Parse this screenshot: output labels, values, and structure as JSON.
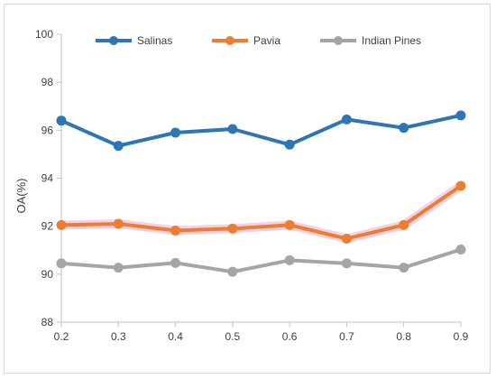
{
  "chart_data": {
    "type": "line",
    "title": "",
    "xlabel": "",
    "ylabel": "OA(%)",
    "x": [
      0.2,
      0.3,
      0.4,
      0.5,
      0.6,
      0.7,
      0.8,
      0.9
    ],
    "x_tick_labels": [
      "0.2",
      "0.3",
      "0.4",
      "0.5",
      "0.6",
      "0.7",
      "0.8",
      "0.9"
    ],
    "ylim": [
      88,
      100
    ],
    "y_ticks": [
      88,
      90,
      92,
      94,
      96,
      98,
      100
    ],
    "y_tick_labels": [
      "88",
      "90",
      "92",
      "94",
      "96",
      "98",
      "100"
    ],
    "grid": false,
    "legend_position": "top",
    "series": [
      {
        "name": "Salinas",
        "color": "#2e75b6",
        "values": [
          96.4,
          95.35,
          95.9,
          96.05,
          95.4,
          96.45,
          96.1,
          96.62
        ]
      },
      {
        "name": "Pavia",
        "color": "#ed7d31",
        "values": [
          92.05,
          92.1,
          91.82,
          91.9,
          92.05,
          91.48,
          92.05,
          93.68
        ]
      },
      {
        "name": "Indian Pines",
        "color": "#a5a5a5",
        "values": [
          90.45,
          90.27,
          90.47,
          90.1,
          90.58,
          90.45,
          90.27,
          91.03
        ]
      }
    ]
  }
}
